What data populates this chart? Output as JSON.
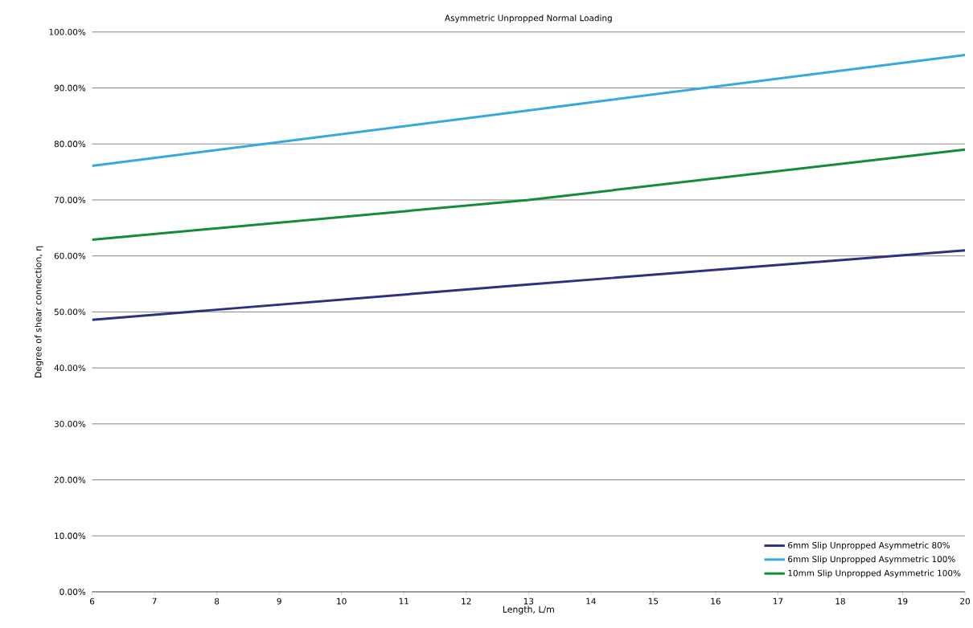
{
  "chart_data": {
    "type": "line",
    "title": "Asymmetric Unpropped Normal Loading",
    "xlabel": "Length, L/m",
    "ylabel": "Degree of shear connection, η",
    "x": [
      6,
      13,
      20
    ],
    "series": [
      {
        "name": "6mm Slip Unpropped Asymmetric 80%",
        "color": "#2e3083",
        "values": [
          48.6,
          54.9,
          61.0
        ]
      },
      {
        "name": "6mm Slip Unpropped Asymmetric 100%",
        "color": "#36a9e1",
        "values": [
          76.1,
          86.0,
          95.9
        ]
      },
      {
        "name": "10mm Slip Unpropped Asymmetric 100%",
        "color": "#138c3a",
        "values": [
          62.9,
          70.0,
          79.0
        ]
      }
    ],
    "xlim": [
      6,
      20
    ],
    "xticks": [
      6,
      7,
      8,
      9,
      10,
      11,
      12,
      13,
      14,
      15,
      16,
      17,
      18,
      19,
      20
    ],
    "ylim": [
      0,
      100
    ],
    "yticks": [
      {
        "value": 0,
        "label": "0.00%"
      },
      {
        "value": 10,
        "label": "10.00%"
      },
      {
        "value": 20,
        "label": "20.00%"
      },
      {
        "value": 30,
        "label": "30.00%"
      },
      {
        "value": 40,
        "label": "40.00%"
      },
      {
        "value": 50,
        "label": "50.00%"
      },
      {
        "value": 60,
        "label": "60.00%"
      },
      {
        "value": 70,
        "label": "70.00%"
      },
      {
        "value": 80,
        "label": "80.00%"
      },
      {
        "value": 90,
        "label": "90.00%"
      },
      {
        "value": 100,
        "label": "100.00%"
      }
    ],
    "grid": "y",
    "legend": "bottom right",
    "marker": "none",
    "line_style": "solid"
  }
}
